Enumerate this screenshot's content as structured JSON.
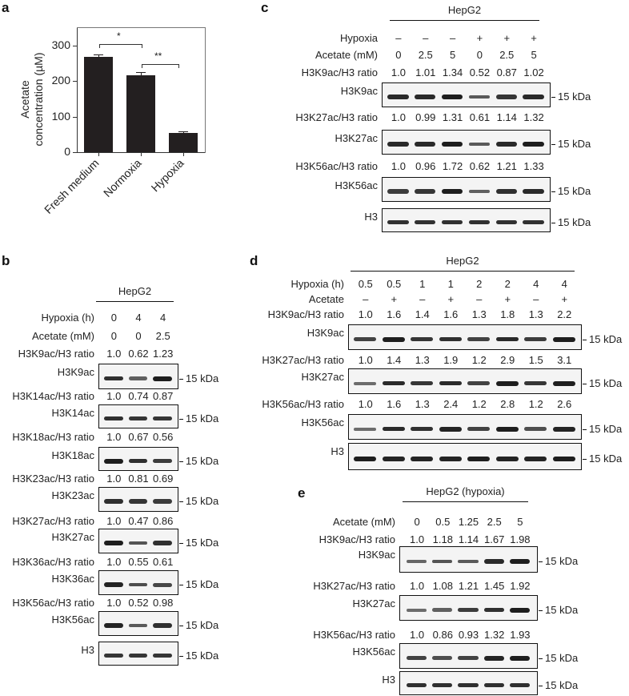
{
  "figure": {
    "panels": {
      "a": {
        "label": "a"
      },
      "b": {
        "label": "b"
      },
      "c": {
        "label": "c"
      },
      "d": {
        "label": "d"
      },
      "e": {
        "label": "e"
      }
    }
  },
  "chart_data": {
    "type": "bar",
    "title": "",
    "xlabel": "",
    "ylabel": "Acetate concentration (µM)",
    "ylabel_lines": [
      "Acetate",
      "concentration (µM)"
    ],
    "categories": [
      "Fresh medium",
      "Normoxia",
      "Hypoxia"
    ],
    "values": [
      269,
      216,
      55
    ],
    "errors": [
      7,
      10,
      4
    ],
    "ylim": [
      0,
      350
    ],
    "yticks": [
      "0",
      "100",
      "200",
      "300"
    ],
    "grid": false,
    "significance": [
      {
        "between": [
          "Fresh medium",
          "Normoxia"
        ],
        "label": "*"
      },
      {
        "between": [
          "Normoxia",
          "Hypoxia"
        ],
        "label": "**"
      }
    ]
  },
  "panel_b": {
    "cell_line": "HepG2",
    "conditions": [
      {
        "label": "Hypoxia (h)",
        "values": [
          "0",
          "4",
          "4"
        ]
      },
      {
        "label": "Acetate (mM)",
        "values": [
          "0",
          "0",
          "2.5"
        ]
      }
    ],
    "blots": [
      {
        "ratio_label": "H3K9ac/H3 ratio",
        "ratios": [
          "1.0",
          "0.62",
          "1.23"
        ],
        "antibody": "H3K9ac",
        "marker": "15 kDa"
      },
      {
        "ratio_label": "H3K14ac/H3 ratio",
        "ratios": [
          "1.0",
          "0.74",
          "0.87"
        ],
        "antibody": "H3K14ac",
        "marker": "15 kDa"
      },
      {
        "ratio_label": "H3K18ac/H3 ratio",
        "ratios": [
          "1.0",
          "0.67",
          "0.56"
        ],
        "antibody": "H3K18ac",
        "marker": "15 kDa"
      },
      {
        "ratio_label": "H3K23ac/H3 ratio",
        "ratios": [
          "1.0",
          "0.81",
          "0.69"
        ],
        "antibody": "H3K23ac",
        "marker": "15 kDa"
      },
      {
        "ratio_label": "H3K27ac/H3 ratio",
        "ratios": [
          "1.0",
          "0.47",
          "0.86"
        ],
        "antibody": "H3K27ac",
        "marker": "15 kDa"
      },
      {
        "ratio_label": "H3K36ac/H3 ratio",
        "ratios": [
          "1.0",
          "0.55",
          "0.61"
        ],
        "antibody": "H3K36ac",
        "marker": "15 kDa"
      },
      {
        "ratio_label": "H3K56ac/H3 ratio",
        "ratios": [
          "1.0",
          "0.52",
          "0.98"
        ],
        "antibody": "H3K56ac",
        "marker": "15 kDa"
      },
      {
        "ratio_label": "",
        "ratios": [],
        "antibody": "H3",
        "marker": "15 kDa"
      }
    ]
  },
  "panel_c": {
    "cell_line": "HepG2",
    "conditions": [
      {
        "label": "Hypoxia",
        "values": [
          "–",
          "–",
          "–",
          "+",
          "+",
          "+"
        ]
      },
      {
        "label": "Acetate (mM)",
        "values": [
          "0",
          "2.5",
          "5",
          "0",
          "2.5",
          "5"
        ]
      }
    ],
    "blots": [
      {
        "ratio_label": "H3K9ac/H3 ratio",
        "ratios": [
          "1.0",
          "1.01",
          "1.34",
          "0.52",
          "0.87",
          "1.02"
        ],
        "antibody": "H3K9ac",
        "marker": "15 kDa"
      },
      {
        "ratio_label": "H3K27ac/H3 ratio",
        "ratios": [
          "1.0",
          "0.99",
          "1.31",
          "0.61",
          "1.14",
          "1.32"
        ],
        "antibody": "H3K27ac",
        "marker": "15 kDa"
      },
      {
        "ratio_label": "H3K56ac/H3 ratio",
        "ratios": [
          "1.0",
          "0.96",
          "1.72",
          "0.62",
          "1.21",
          "1.33"
        ],
        "antibody": "H3K56ac",
        "marker": "15 kDa"
      },
      {
        "ratio_label": "",
        "ratios": [],
        "antibody": "H3",
        "marker": "15 kDa"
      }
    ]
  },
  "panel_d": {
    "cell_line": "HepG2",
    "conditions": [
      {
        "label": "Hypoxia (h)",
        "values": [
          "0.5",
          "0.5",
          "1",
          "1",
          "2",
          "2",
          "4",
          "4"
        ]
      },
      {
        "label": "Acetate",
        "values": [
          "–",
          "+",
          "–",
          "+",
          "–",
          "+",
          "–",
          "+"
        ]
      }
    ],
    "blots": [
      {
        "ratio_label": "H3K9ac/H3 ratio",
        "ratios": [
          "1.0",
          "1.6",
          "1.4",
          "1.6",
          "1.3",
          "1.8",
          "1.3",
          "2.2"
        ],
        "antibody": "H3K9ac",
        "marker": "15 kDa"
      },
      {
        "ratio_label": "H3K27ac/H3 ratio",
        "ratios": [
          "1.0",
          "1.4",
          "1.3",
          "1.9",
          "1.2",
          "2.9",
          "1.5",
          "3.1"
        ],
        "antibody": "H3K27ac",
        "marker": "15 kDa"
      },
      {
        "ratio_label": "H3K56ac/H3 ratio",
        "ratios": [
          "1.0",
          "1.6",
          "1.3",
          "2.4",
          "1.2",
          "2.8",
          "1.2",
          "2.6"
        ],
        "antibody": "H3K56ac",
        "marker": "15 kDa"
      },
      {
        "ratio_label": "",
        "ratios": [],
        "antibody": "H3",
        "marker": "15 kDa"
      }
    ]
  },
  "panel_e": {
    "cell_line": "HepG2 (hypoxia)",
    "conditions": [
      {
        "label": "Acetate (mM)",
        "values": [
          "0",
          "0.5",
          "1.25",
          "2.5",
          "5"
        ]
      }
    ],
    "blots": [
      {
        "ratio_label": "H3K9ac/H3 ratio",
        "ratios": [
          "1.0",
          "1.18",
          "1.14",
          "1.67",
          "1.98"
        ],
        "antibody": "H3K9ac",
        "marker": "15 kDa"
      },
      {
        "ratio_label": "H3K27ac/H3 ratio",
        "ratios": [
          "1.0",
          "1.08",
          "1.21",
          "1.45",
          "1.92"
        ],
        "antibody": "H3K27ac",
        "marker": "15 kDa"
      },
      {
        "ratio_label": "H3K56ac/H3 ratio",
        "ratios": [
          "1.0",
          "0.86",
          "0.93",
          "1.32",
          "1.93"
        ],
        "antibody": "H3K56ac",
        "marker": "15 kDa"
      },
      {
        "ratio_label": "",
        "ratios": [],
        "antibody": "H3",
        "marker": "15 kDa"
      }
    ]
  }
}
